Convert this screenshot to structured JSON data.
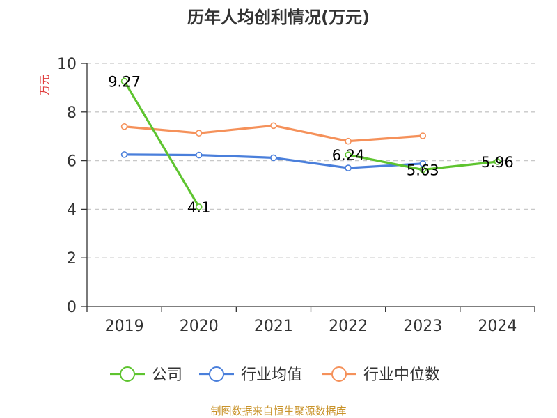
{
  "chart_data": {
    "type": "line",
    "title": "历年人均创利情况(万元)",
    "ylabel": "万元",
    "ylim": [
      0,
      10
    ],
    "yticks": [
      0,
      2,
      4,
      6,
      8,
      10
    ],
    "categories": [
      "2019",
      "2020",
      "2021",
      "2022",
      "2023",
      "2024"
    ],
    "grid": true,
    "legend_position": "bottom",
    "series": [
      {
        "name": "公司",
        "color": "#5ec42f",
        "values": [
          9.27,
          4.1,
          null,
          6.24,
          5.63,
          5.96
        ],
        "labels": [
          "9.27",
          "4.1",
          "",
          "6.24",
          "5.63",
          "5.96"
        ]
      },
      {
        "name": "行业均值",
        "color": "#4a7fdb",
        "values": [
          6.25,
          6.23,
          6.12,
          5.7,
          5.88,
          null
        ],
        "labels": [
          "",
          "",
          "",
          "",
          "",
          ""
        ]
      },
      {
        "name": "行业中位数",
        "color": "#f5915a",
        "values": [
          7.4,
          7.13,
          7.44,
          6.8,
          7.02,
          null
        ],
        "labels": [
          "",
          "",
          "",
          "",
          "",
          ""
        ]
      }
    ]
  },
  "source_note": "制图数据来自恒生聚源数据库",
  "colors": {
    "ylabel": "#e03c3c",
    "source": "#c9932a",
    "grid": "#c8c8c8",
    "axis": "#333333"
  }
}
